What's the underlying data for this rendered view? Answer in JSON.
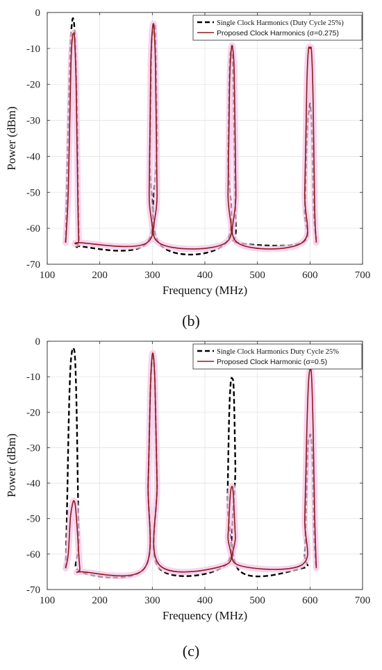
{
  "chart_data": [
    {
      "type": "line",
      "panel_label": "(b)",
      "xlabel": "Frequency (MHz)",
      "ylabel": "Power (dBm)",
      "xlim": [
        100,
        700
      ],
      "ylim": [
        -70,
        0
      ],
      "xticks": [
        100,
        200,
        300,
        400,
        500,
        600,
        700
      ],
      "yticks": [
        0,
        -10,
        -20,
        -30,
        -40,
        -50,
        -60,
        -70
      ],
      "grid": true,
      "legend_position": "top-right",
      "series": [
        {
          "name": "Single Clock Harmonics (Duty Cycle 25%)",
          "color": "#000000",
          "style": "dashed",
          "x": [
            135,
            140,
            144,
            147,
            150,
            153,
            157,
            160,
            163,
            290,
            295,
            298,
            301,
            304,
            306,
            309,
            312,
            440,
            444,
            447,
            450,
            453,
            456,
            459,
            462,
            585,
            590,
            594,
            598,
            601,
            604,
            607,
            612
          ],
          "y": [
            -64,
            -30,
            -10,
            -3,
            -2,
            -8,
            -30,
            -62,
            -65,
            -64,
            -40,
            -12,
            -5,
            -3,
            -8,
            -35,
            -64,
            -64,
            -40,
            -15,
            -11,
            -14,
            -35,
            -60,
            -64,
            -64,
            -55,
            -35,
            -27,
            -26,
            -35,
            -55,
            -63
          ]
        },
        {
          "name": "Proposed Clock Harmonics (σ=0.275)",
          "color": "#8b1a1a",
          "style": "solid",
          "x": [
            135,
            140,
            145,
            148,
            150,
            152,
            155,
            158,
            160,
            163,
            290,
            294,
            297,
            300,
            303,
            306,
            309,
            312,
            440,
            444,
            447,
            450,
            453,
            456,
            459,
            462,
            585,
            590,
            594,
            597,
            600,
            603,
            606,
            609,
            612
          ],
          "y": [
            -64,
            -50,
            -15,
            -7,
            -6,
            -7,
            -20,
            -50,
            -63,
            -64,
            -64,
            -50,
            -15,
            -5,
            -4,
            -15,
            -50,
            -64,
            -64,
            -50,
            -20,
            -10.5,
            -10,
            -18,
            -50,
            -64,
            -64,
            -50,
            -20,
            -10.5,
            -10,
            -11,
            -25,
            -55,
            -64
          ]
        }
      ]
    },
    {
      "type": "line",
      "panel_label": "(c)",
      "xlabel": "Frequency (MHz)",
      "ylabel": "Power (dBm)",
      "xlim": [
        100,
        700
      ],
      "ylim": [
        -70,
        0
      ],
      "xticks": [
        100,
        200,
        300,
        400,
        500,
        600,
        700
      ],
      "yticks": [
        0,
        -10,
        -20,
        -30,
        -40,
        -50,
        -60,
        -70
      ],
      "grid": true,
      "legend_position": "top-right",
      "series": [
        {
          "name": "Single Clock Harmonics Duty Cycle 25%",
          "color": "#000000",
          "style": "dashed",
          "x": [
            135,
            138,
            141,
            144,
            147,
            150,
            153,
            156,
            160,
            164,
            285,
            292,
            296,
            299,
            302,
            305,
            309,
            313,
            440,
            443,
            446,
            449,
            452,
            455,
            458,
            462,
            585,
            590,
            593,
            596,
            599,
            602,
            605,
            608,
            612
          ],
          "y": [
            -64,
            -45,
            -22,
            -8,
            -3,
            -2,
            -5,
            -20,
            -55,
            -65,
            -64,
            -40,
            -15,
            -6,
            -5,
            -12,
            -40,
            -64,
            -63,
            -45,
            -22,
            -12,
            -10.5,
            -14,
            -35,
            -64,
            -64,
            -60,
            -45,
            -30,
            -27,
            -27,
            -35,
            -55,
            -64
          ]
        },
        {
          "name": "Proposed Clock Harmonic (σ=0.5)",
          "color": "#8b1a1a",
          "style": "solid",
          "x": [
            135,
            140,
            144,
            148,
            151,
            154,
            158,
            162,
            166,
            285,
            292,
            296,
            299,
            302,
            305,
            309,
            313,
            440,
            444,
            448,
            451,
            454,
            458,
            462,
            585,
            590,
            594,
            597,
            600,
            603,
            606,
            609,
            612
          ],
          "y": [
            -64,
            -60,
            -50,
            -46,
            -45,
            -47,
            -55,
            -64,
            -65,
            -64,
            -40,
            -15,
            -5,
            -4,
            -12,
            -40,
            -63,
            -63,
            -55,
            -44,
            -41,
            -43,
            -55,
            -63,
            -63,
            -50,
            -25,
            -12,
            -8,
            -10,
            -25,
            -50,
            -64
          ]
        }
      ]
    }
  ]
}
